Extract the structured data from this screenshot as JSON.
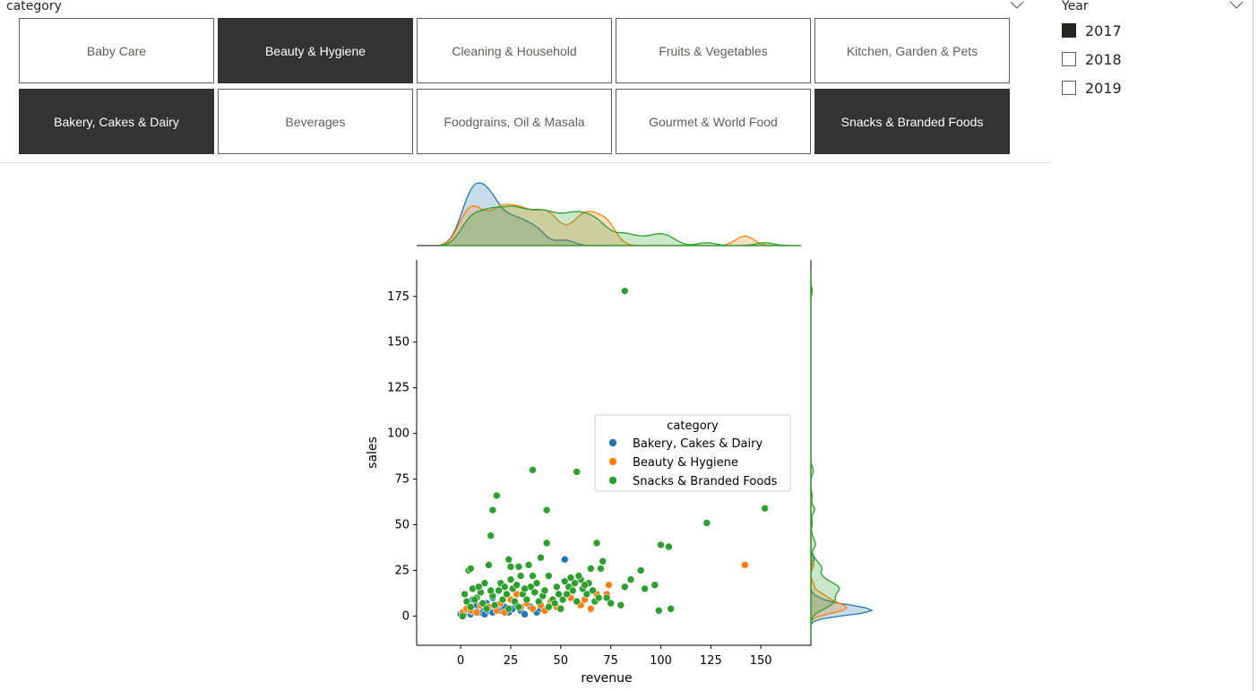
{
  "category_slicer": {
    "title": "category",
    "tiles": [
      {
        "label": "Baby Care",
        "selected": false
      },
      {
        "label": "Beauty & Hygiene",
        "selected": true
      },
      {
        "label": "Cleaning & Household",
        "selected": false
      },
      {
        "label": "Fruits & Vegetables",
        "selected": false
      },
      {
        "label": "Kitchen, Garden & Pets",
        "selected": false
      },
      {
        "label": "Bakery, Cakes & Dairy",
        "selected": true
      },
      {
        "label": "Beverages",
        "selected": false
      },
      {
        "label": "Foodgrains, Oil & Masala",
        "selected": false
      },
      {
        "label": "Gourmet & World Food",
        "selected": false
      },
      {
        "label": "Snacks & Branded Foods",
        "selected": true
      }
    ]
  },
  "year_slicer": {
    "title": "Year",
    "items": [
      {
        "label": "2017",
        "checked": true
      },
      {
        "label": "2018",
        "checked": false
      },
      {
        "label": "2019",
        "checked": false
      }
    ]
  },
  "chart_data": {
    "type": "scatter",
    "xlabel": "revenue",
    "ylabel": "sales",
    "xlim": [
      -22,
      175
    ],
    "ylim": [
      -16,
      195
    ],
    "xticks": [
      0,
      25,
      50,
      75,
      100,
      125,
      150
    ],
    "yticks": [
      0,
      25,
      50,
      75,
      100,
      125,
      150,
      175
    ],
    "legend": {
      "title": "category",
      "placement": "center-right"
    },
    "marginal": "kde",
    "series": [
      {
        "name": "Bakery, Cakes & Dairy",
        "color": "#1f77b4",
        "points": [
          [
            0,
            1
          ],
          [
            2,
            3
          ],
          [
            3,
            2
          ],
          [
            4,
            5
          ],
          [
            5,
            1
          ],
          [
            6,
            4
          ],
          [
            7,
            2
          ],
          [
            8,
            6
          ],
          [
            9,
            3
          ],
          [
            10,
            2
          ],
          [
            11,
            5
          ],
          [
            12,
            1
          ],
          [
            13,
            7
          ],
          [
            14,
            3
          ],
          [
            15,
            4
          ],
          [
            16,
            2
          ],
          [
            18,
            6
          ],
          [
            20,
            3
          ],
          [
            22,
            5
          ],
          [
            24,
            2
          ],
          [
            26,
            4
          ],
          [
            28,
            6
          ],
          [
            30,
            3
          ],
          [
            32,
            1
          ],
          [
            35,
            5
          ],
          [
            38,
            2
          ],
          [
            40,
            4
          ],
          [
            52,
            31
          ],
          [
            16,
            10
          ],
          [
            6,
            9
          ]
        ]
      },
      {
        "name": "Beauty & Hygiene",
        "color": "#ff7f0e",
        "points": [
          [
            1,
            2
          ],
          [
            3,
            4
          ],
          [
            5,
            3
          ],
          [
            8,
            2
          ],
          [
            10,
            6
          ],
          [
            14,
            5
          ],
          [
            18,
            3
          ],
          [
            20,
            7
          ],
          [
            22,
            2
          ],
          [
            25,
            9
          ],
          [
            28,
            12
          ],
          [
            30,
            5
          ],
          [
            33,
            7
          ],
          [
            36,
            4
          ],
          [
            40,
            6
          ],
          [
            42,
            3
          ],
          [
            45,
            8
          ],
          [
            48,
            5
          ],
          [
            55,
            10
          ],
          [
            60,
            6
          ],
          [
            62,
            9
          ],
          [
            65,
            4
          ],
          [
            68,
            12
          ],
          [
            73,
            12
          ],
          [
            74,
            17
          ],
          [
            142,
            28
          ]
        ]
      },
      {
        "name": "Snacks & Branded Foods",
        "color": "#2ca02c",
        "points": [
          [
            82,
            178
          ],
          [
            36,
            80
          ],
          [
            58,
            79
          ],
          [
            18,
            66
          ],
          [
            16,
            58
          ],
          [
            43,
            58
          ],
          [
            15,
            44
          ],
          [
            123,
            51
          ],
          [
            152,
            59
          ],
          [
            100,
            39
          ],
          [
            104,
            38
          ],
          [
            43,
            40
          ],
          [
            68,
            40
          ],
          [
            24,
            31
          ],
          [
            29,
            27
          ],
          [
            34,
            28
          ],
          [
            40,
            32
          ],
          [
            14,
            28
          ],
          [
            4,
            25
          ],
          [
            5,
            26
          ],
          [
            20,
            18
          ],
          [
            25,
            20
          ],
          [
            30,
            22
          ],
          [
            44,
            22
          ],
          [
            55,
            21
          ],
          [
            60,
            20
          ],
          [
            65,
            26
          ],
          [
            70,
            26
          ],
          [
            71,
            30
          ],
          [
            82,
            16
          ],
          [
            85,
            20
          ],
          [
            90,
            25
          ],
          [
            92,
            15
          ],
          [
            97,
            17
          ],
          [
            99,
            3
          ],
          [
            105,
            4
          ],
          [
            73,
            10
          ],
          [
            75,
            7
          ],
          [
            80,
            6
          ],
          [
            2,
            12
          ],
          [
            3,
            8
          ],
          [
            6,
            15
          ],
          [
            8,
            10
          ],
          [
            10,
            13
          ],
          [
            11,
            7
          ],
          [
            12,
            18
          ],
          [
            13,
            4
          ],
          [
            16,
            11
          ],
          [
            17,
            6
          ],
          [
            19,
            14
          ],
          [
            21,
            9
          ],
          [
            23,
            12
          ],
          [
            24,
            4
          ],
          [
            26,
            15
          ],
          [
            27,
            8
          ],
          [
            29,
            5
          ],
          [
            31,
            12
          ],
          [
            33,
            9
          ],
          [
            35,
            16
          ],
          [
            37,
            13
          ],
          [
            39,
            8
          ],
          [
            41,
            11
          ],
          [
            42,
            14
          ],
          [
            44,
            5
          ],
          [
            46,
            9
          ],
          [
            47,
            7
          ],
          [
            49,
            12
          ],
          [
            50,
            4
          ],
          [
            51,
            9
          ],
          [
            53,
            12
          ],
          [
            54,
            16
          ],
          [
            56,
            14
          ],
          [
            57,
            18
          ],
          [
            58,
            8
          ],
          [
            59,
            22
          ],
          [
            61,
            15
          ],
          [
            63,
            12
          ],
          [
            64,
            18
          ],
          [
            66,
            14
          ],
          [
            67,
            8
          ],
          [
            69,
            10
          ],
          [
            1,
            0
          ],
          [
            5,
            5
          ],
          [
            7,
            9
          ],
          [
            9,
            16
          ],
          [
            15,
            14
          ],
          [
            22,
            16
          ],
          [
            28,
            17
          ],
          [
            32,
            15
          ],
          [
            38,
            18
          ],
          [
            48,
            16
          ],
          [
            52,
            19
          ],
          [
            62,
            17
          ],
          [
            36,
            22
          ],
          [
            25,
            27
          ]
        ]
      }
    ]
  }
}
